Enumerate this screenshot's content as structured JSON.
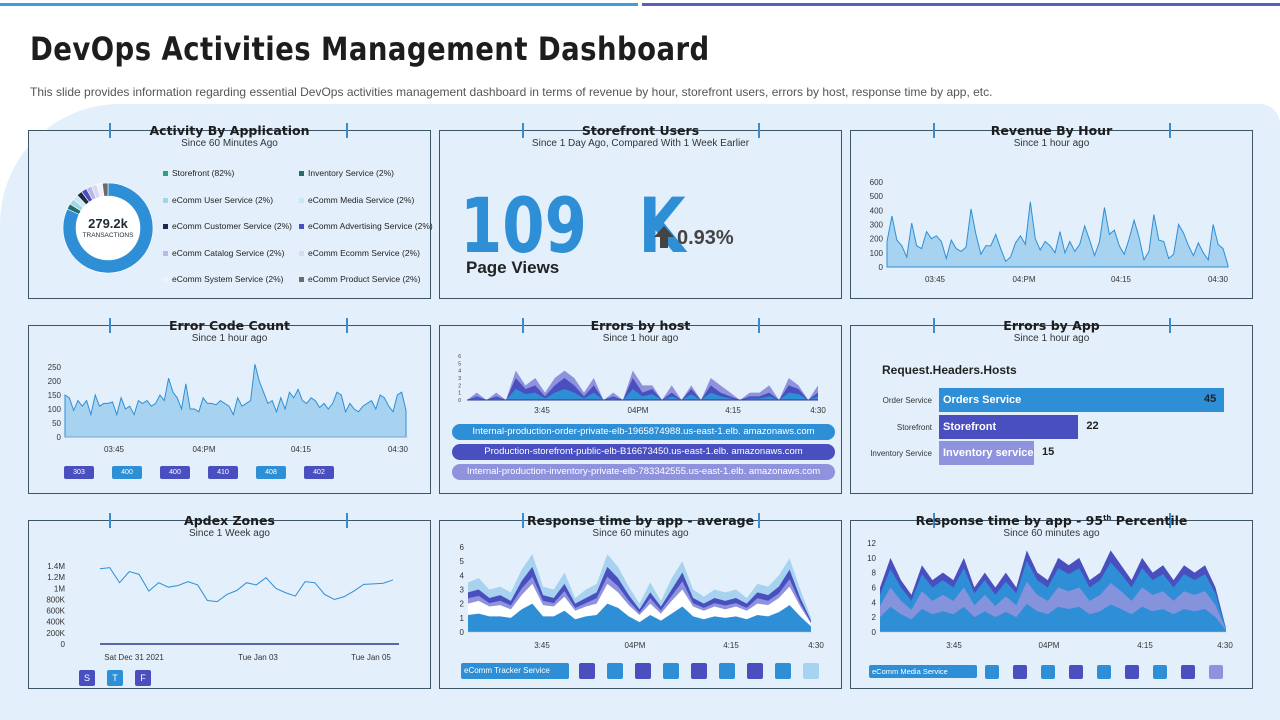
{
  "colors": {
    "blue": "#2e8fd6",
    "indigo": "#4a4fc0",
    "lavender": "#8f93de",
    "light": "#a8d3f0",
    "dark": "#2b3a8a"
  },
  "header": {
    "title": "DevOps Activities Management Dashboard",
    "subtitle": "This slide provides information regarding essential DevOps activities management dashboard in terms of revenue by hour, storefront users, errors by host, response time by app, etc."
  },
  "activity": {
    "title": "Activity By Application",
    "subtitle": "Since 60 Minutes Ago",
    "center_value": "279.2k",
    "center_label": "TRANSACTIONS",
    "legend": [
      {
        "label": "Storefront (82%)",
        "color": "#2ea37a"
      },
      {
        "label": "Inventory Service (2%)",
        "color": "#1f6f6a"
      },
      {
        "label": "eComm User Service (2%)",
        "color": "#9fd6e8"
      },
      {
        "label": "eComm Media Service (2%)",
        "color": "#c9e8f4"
      },
      {
        "label": "eComm Customer Service (2%)",
        "color": "#1d2a4a"
      },
      {
        "label": "eComm Advertising Service (2%)",
        "color": "#4a4fc0"
      },
      {
        "label": "eComm Catalog Service (2%)",
        "color": "#b7b9ea"
      },
      {
        "label": "eComm Ecomm Service (2%)",
        "color": "#d8d9f2"
      },
      {
        "label": "eComm System Service (2%)",
        "color": "#f1f1f8"
      },
      {
        "label": "eComm Product Service (2%)",
        "color": "#6b6b6b"
      }
    ],
    "donut": [
      82,
      2,
      2,
      2,
      2,
      2,
      2,
      2,
      2,
      2
    ]
  },
  "storefront": {
    "title": "Storefront Users",
    "subtitle": "Since 1 Day Ago, Compared With 1 Week Earlier",
    "value": "109 K",
    "value_label": "Page Views",
    "change": "0.93%"
  },
  "revenue": {
    "title": "Revenue By Hour",
    "subtitle": "Since 1 hour ago"
  },
  "errorcode": {
    "title": "Error Code Count",
    "subtitle": "Since 1 hour ago",
    "codes": [
      "303",
      "400",
      "400",
      "410",
      "408",
      "402"
    ]
  },
  "errorshost": {
    "title": "Errors by host",
    "subtitle": "Since 1 hour ago",
    "hosts": [
      "Internal-production-order-private-elb-1965874988.us-east-1.elb. amazonaws.com",
      "Production-storefront-public-elb-B16673450.us-east-1.elb. amazonaws.com",
      "Internal-production-inventory-private-elb-783342555.us-east-1.elb. amazonaws.com"
    ]
  },
  "errorsapp": {
    "title": "Errors by App",
    "subtitle": "Since 1 hour ago",
    "heading": "Request.Headers.Hosts",
    "bars": [
      {
        "label": "Order Service",
        "name": "Orders Service",
        "value": 45
      },
      {
        "label": "Storefront",
        "name": "Storefront",
        "value": 22
      },
      {
        "label": "Inventory Service",
        "name": "Inventory service",
        "value": 15
      }
    ]
  },
  "apdex": {
    "title": "Apdex Zones",
    "subtitle": "Since 1 Week ago",
    "badges": [
      "S",
      "T",
      "F"
    ]
  },
  "respavg": {
    "title": "Response time by app - average",
    "subtitle": "Since 60 minutes ago",
    "legend_label": "eComm Tracker Service"
  },
  "resp95": {
    "title_main": "Response time by app - 95",
    "title_sup": "th",
    "title_end": " Percentile",
    "subtitle": "Since 60 minutes ago",
    "legend_label": "eComm Media Service"
  },
  "chart_data": [
    {
      "type": "area",
      "title": "Revenue By Hour",
      "yticks": [
        "600",
        "500",
        "400",
        "300",
        "200",
        "100",
        "0"
      ],
      "ylim": [
        0,
        600
      ],
      "xticks": [
        "03:45",
        "04:PM",
        "04:15",
        "04:30"
      ],
      "values": [
        180,
        360,
        190,
        150,
        70,
        310,
        150,
        130,
        250,
        200,
        220,
        180,
        60,
        190,
        130,
        110,
        140,
        410,
        230,
        90,
        150,
        150,
        230,
        130,
        40,
        70,
        170,
        220,
        160,
        460,
        200,
        120,
        180,
        150,
        100,
        250,
        100,
        180,
        110,
        160,
        290,
        190,
        80,
        180,
        420,
        230,
        260,
        150,
        90,
        200,
        330,
        210,
        50,
        110,
        370,
        190,
        180,
        60,
        90,
        300,
        240,
        150,
        80,
        170,
        100,
        50,
        300,
        160,
        130,
        10
      ]
    },
    {
      "type": "area",
      "title": "Error Code Count",
      "yticks": [
        "250",
        "200",
        "150",
        "100",
        "50",
        "0"
      ],
      "ylim": [
        0,
        250
      ],
      "xticks": [
        "03:45",
        "04:PM",
        "04:15",
        "04:30"
      ],
      "values": [
        150,
        140,
        95,
        130,
        110,
        130,
        80,
        150,
        110,
        120,
        120,
        125,
        80,
        140,
        100,
        110,
        80,
        130,
        120,
        130,
        110,
        120,
        150,
        130,
        210,
        160,
        140,
        100,
        190,
        100,
        100,
        90,
        140,
        120,
        120,
        115,
        130,
        120,
        110,
        80,
        140,
        110,
        120,
        130,
        260,
        200,
        160,
        120,
        130,
        90,
        140,
        100,
        160,
        140,
        170,
        130,
        120,
        140,
        130,
        105,
        120,
        100,
        120,
        160,
        150,
        90,
        120,
        100,
        90,
        110,
        120,
        130,
        100,
        150,
        140,
        110,
        90,
        150,
        160,
        95
      ]
    },
    {
      "type": "area",
      "title": "Errors by host",
      "yticks": [
        "6",
        "5",
        "4",
        "3",
        "2",
        "1",
        "0"
      ],
      "ylim": [
        0,
        6
      ],
      "xticks": [
        "3:45",
        "04PM",
        "4:15",
        "4:30"
      ],
      "series": [
        {
          "values": [
            0,
            1,
            0,
            1,
            0,
            4,
            2,
            3,
            1,
            3,
            4,
            3,
            1,
            3,
            0,
            1,
            0,
            4,
            2,
            2,
            0,
            2,
            0,
            2,
            0,
            3,
            2,
            1,
            0,
            1,
            1,
            2,
            0,
            3,
            2,
            0,
            2
          ]
        },
        {
          "values": [
            0,
            0.5,
            0,
            0.5,
            0,
            3,
            1.5,
            2,
            0.5,
            2,
            3,
            2,
            0.5,
            2,
            0,
            0.5,
            0,
            3,
            1,
            1.5,
            0,
            1,
            0,
            1.5,
            0,
            2,
            1,
            0.5,
            0,
            0.5,
            0.5,
            1,
            0,
            2,
            1.5,
            0,
            1
          ]
        },
        {
          "values": [
            0,
            0.2,
            0,
            0.2,
            0,
            1.5,
            0.8,
            1,
            0.2,
            1,
            1.5,
            1,
            0.2,
            1,
            0,
            0.2,
            0,
            1.5,
            0.5,
            0.8,
            0,
            0.5,
            0,
            0.8,
            0,
            1,
            0.5,
            0.2,
            0,
            0.2,
            0.2,
            0.5,
            0,
            1,
            0.8,
            0,
            0.5
          ]
        }
      ]
    },
    {
      "type": "bar",
      "title": "Errors by App",
      "categories": [
        "Orders Service",
        "Storefront",
        "Inventory service"
      ],
      "values": [
        45,
        22,
        15
      ]
    },
    {
      "type": "line",
      "title": "Apdex Zones",
      "yticks": [
        "1.4M",
        "1.2M",
        "1M",
        "800K",
        "600K",
        "400K",
        "200K",
        "0"
      ],
      "ylim": [
        0,
        1400000
      ],
      "xticks": [
        "Sat Dec 31   2021",
        "Tue Jan 03",
        "Tue Jan 05"
      ],
      "values": [
        1350000,
        1370000,
        1100000,
        1300000,
        1250000,
        950000,
        1100000,
        1020000,
        1050000,
        1120000,
        1060000,
        780000,
        760000,
        890000,
        960000,
        1100000,
        1060000,
        1190000,
        1000000,
        920000,
        860000,
        1120000,
        1100000,
        890000,
        800000,
        850000,
        950000,
        1070000,
        1080000,
        1090000,
        1150000
      ]
    },
    {
      "type": "area",
      "title": "Response time by app - average",
      "yticks": [
        "6",
        "5",
        "4",
        "3",
        "2",
        "1",
        "0"
      ],
      "ylim": [
        0,
        6
      ],
      "xticks": [
        "3:45",
        "04PM",
        "4:15",
        "4:30"
      ],
      "series": [
        {
          "values": [
            3.5,
            3.8,
            3,
            3.2,
            2.8,
            4.4,
            5.5,
            3.2,
            3,
            4.2,
            2.4,
            3,
            3.4,
            5.5,
            4.6,
            3.2,
            2,
            3.5,
            2.2,
            3.8,
            5,
            3,
            2.5,
            3,
            2.8,
            3,
            2.4,
            3.4,
            3.2,
            4,
            5.2,
            3,
            1
          ]
        },
        {
          "values": [
            2.8,
            3,
            2.4,
            2.6,
            2.2,
            3.6,
            4.6,
            2.6,
            2.4,
            3.4,
            2,
            2.4,
            2.8,
            4.6,
            3.8,
            2.6,
            1.6,
            2.8,
            1.8,
            3,
            4.2,
            2.4,
            2,
            2.4,
            2.2,
            2.4,
            2,
            2.8,
            2.6,
            3.2,
            4.4,
            2.4,
            0.8
          ]
        },
        {
          "values": [
            2,
            2.2,
            1.8,
            1.9,
            1.6,
            2.6,
            3.4,
            1.9,
            1.8,
            2.5,
            1.5,
            1.8,
            2,
            3.4,
            2.8,
            1.9,
            1.2,
            2,
            1.3,
            2.2,
            3,
            1.8,
            1.5,
            1.8,
            1.6,
            1.8,
            1.5,
            2,
            1.9,
            2.4,
            3.2,
            1.8,
            0.6
          ]
        },
        {
          "values": [
            1.2,
            1.3,
            1.1,
            1.1,
            1,
            1.6,
            2,
            1.1,
            1.1,
            1.5,
            0.9,
            1.1,
            1.2,
            2,
            1.7,
            1.1,
            0.7,
            1.2,
            0.8,
            1.3,
            1.8,
            1.1,
            0.9,
            1.1,
            1,
            1.1,
            0.9,
            1.2,
            1.1,
            1.4,
            1.9,
            1.1,
            0.4
          ]
        }
      ]
    },
    {
      "type": "area",
      "title": "Response time by app - 95th Percentile",
      "yticks": [
        "12",
        "10",
        "8",
        "6",
        "4",
        "2",
        "0"
      ],
      "ylim": [
        0,
        12
      ],
      "xticks": [
        "3:45",
        "04PM",
        "4:15",
        "4:30"
      ],
      "series": [
        {
          "values": [
            6,
            10,
            7,
            5,
            9,
            7,
            8,
            7,
            10,
            6,
            8,
            6,
            8,
            6,
            11,
            8,
            7,
            10,
            9,
            10,
            7,
            8,
            11,
            9,
            7,
            10,
            8,
            9,
            7,
            9,
            8,
            9,
            6,
            0.5
          ]
        },
        {
          "values": [
            5,
            8.5,
            6,
            4.2,
            7.8,
            6,
            7,
            6,
            8.6,
            5.2,
            7,
            5,
            6.8,
            5.2,
            9.6,
            7,
            6,
            8.6,
            7.8,
            8.6,
            6,
            7,
            9.4,
            7.8,
            6,
            8.6,
            7,
            7.8,
            6,
            7.8,
            7,
            7.8,
            5.2,
            0.4
          ]
        },
        {
          "values": [
            3.5,
            6,
            4.2,
            3,
            5.5,
            4.2,
            5,
            4.2,
            6,
            3.6,
            5,
            3.5,
            4.8,
            3.6,
            6.8,
            5,
            4.2,
            6,
            5.5,
            6,
            4.2,
            5,
            6.6,
            5.5,
            4.2,
            6,
            5,
            5.5,
            4.2,
            5.5,
            5,
            5.5,
            3.6,
            0.3
          ]
        },
        {
          "values": [
            2,
            3.4,
            2.4,
            1.7,
            3.1,
            2.4,
            2.8,
            2.4,
            3.4,
            2,
            2.8,
            2,
            2.7,
            2,
            3.8,
            2.8,
            2.4,
            3.4,
            3.1,
            3.4,
            2.4,
            2.8,
            3.7,
            3.1,
            2.4,
            3.4,
            2.8,
            3.1,
            2.4,
            3.1,
            2.8,
            3.1,
            2,
            0.2
          ]
        }
      ]
    }
  ]
}
